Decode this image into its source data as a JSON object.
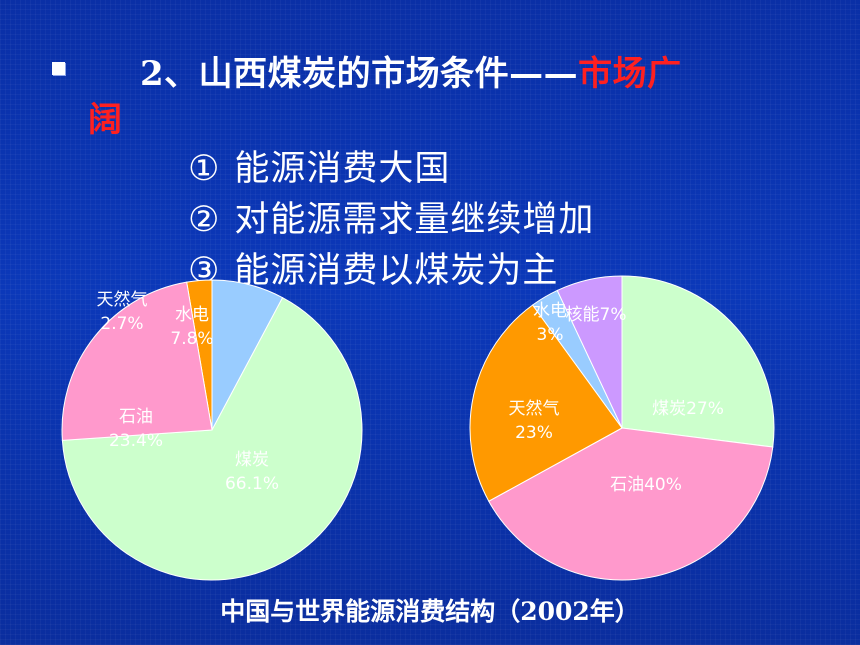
{
  "heading": {
    "bullet": "■",
    "number": "2、",
    "text": "山西煤炭的市场条件——",
    "accent_part1": "市场广",
    "accent_part2": "阔"
  },
  "points": [
    {
      "num": "①",
      "text": "能源消费大国"
    },
    {
      "num": "②",
      "text": "对能源需求量继续增加"
    },
    {
      "num": "③",
      "text": "能源消费以煤炭为主"
    }
  ],
  "caption": "中国与世界能源消费结构（2002年）",
  "colors": {
    "background": "#0b36b3",
    "accent": "#ff2020",
    "coal": "#ccffcc",
    "oil": "#ff99cc",
    "gas": "#ff9900",
    "hydro": "#99ccff",
    "nuclear": "#cc99ff"
  },
  "chart_data": [
    {
      "type": "pie",
      "title": "",
      "slices": [
        {
          "name": "煤炭",
          "value": 66.1,
          "label": "煤炭\n66.1%",
          "color": "#ccffcc"
        },
        {
          "name": "石油",
          "value": 23.4,
          "label": "石油\n23.4%",
          "color": "#ff99cc"
        },
        {
          "name": "天然气",
          "value": 2.7,
          "label": "天然气\n2.7%",
          "color": "#ff9900"
        },
        {
          "name": "水电",
          "value": 7.8,
          "label": "水电\n7.8%",
          "color": "#99ccff"
        }
      ]
    },
    {
      "type": "pie",
      "title": "",
      "slices": [
        {
          "name": "煤炭",
          "value": 27,
          "label": "煤炭27%",
          "color": "#ccffcc"
        },
        {
          "name": "石油",
          "value": 40,
          "label": "石油40%",
          "color": "#ff99cc"
        },
        {
          "name": "天然气",
          "value": 23,
          "label": "天然气\n23%",
          "color": "#ff9900"
        },
        {
          "name": "水电",
          "value": 3,
          "label": "水电\n3%",
          "color": "#99ccff"
        },
        {
          "name": "核能",
          "value": 7,
          "label": "核能7%",
          "color": "#cc99ff"
        }
      ]
    }
  ]
}
